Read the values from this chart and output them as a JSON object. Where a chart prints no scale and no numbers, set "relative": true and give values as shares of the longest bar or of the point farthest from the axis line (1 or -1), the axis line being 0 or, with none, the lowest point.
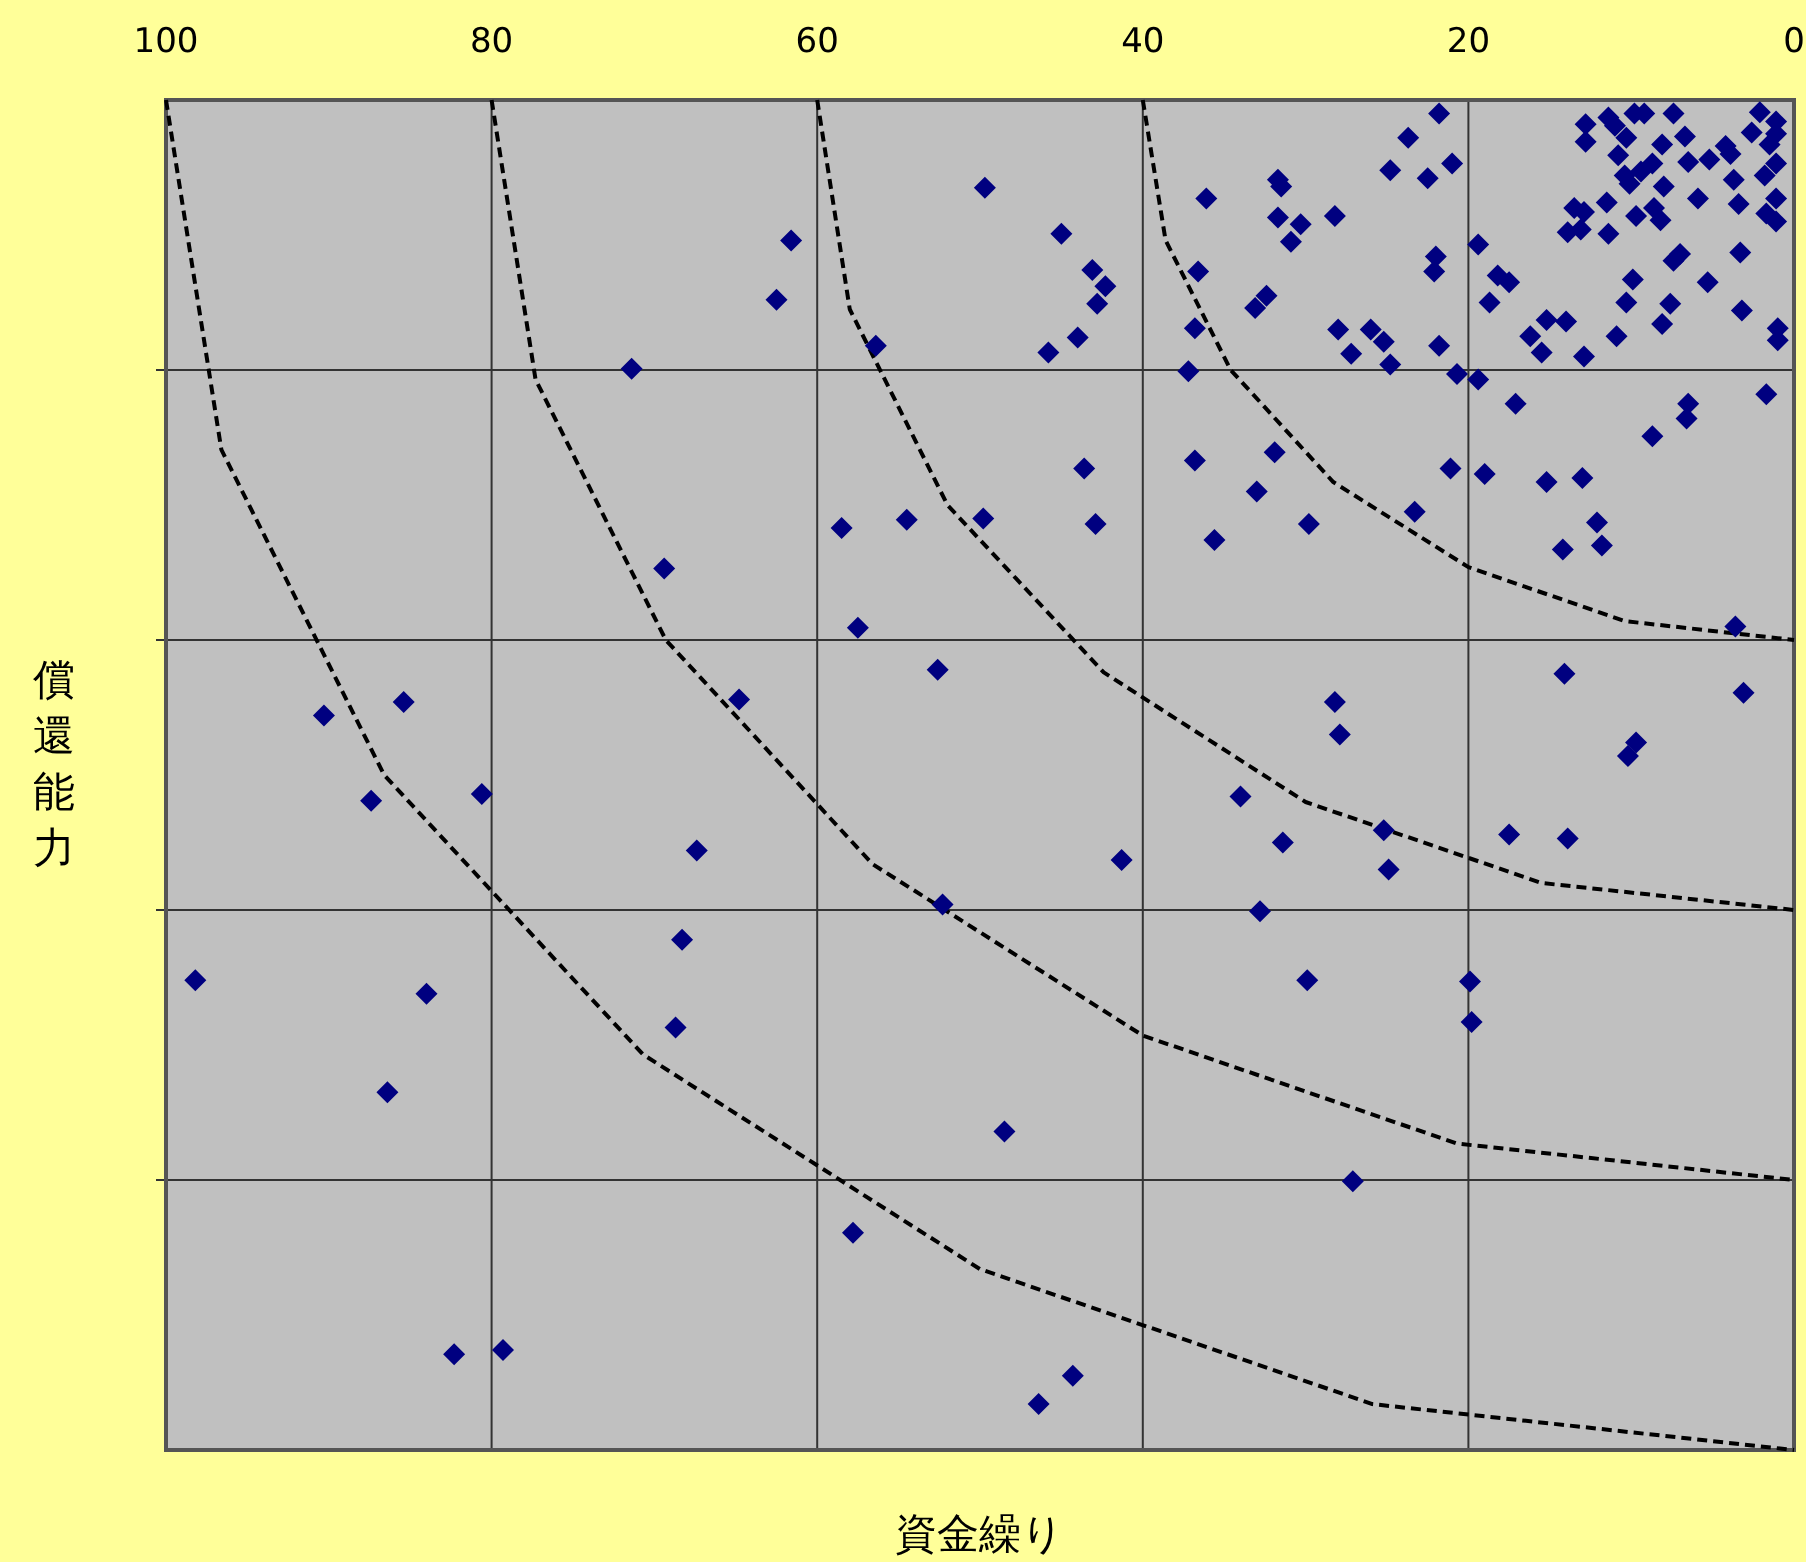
{
  "chart_data": {
    "type": "scatter",
    "xlabel": "資金繰り",
    "ylabel": "償還能力",
    "xlim": [
      100,
      0
    ],
    "xticks": [
      100,
      80,
      60,
      40,
      20,
      0
    ],
    "relative": true,
    "grid": true,
    "series": [
      {
        "type": "scatter",
        "color": "#000080",
        "marker": "diamond",
        "x": [
          21.8,
          23.7,
          24.8,
          22.5,
          21.0,
          36.1,
          31.7,
          31.5,
          31.7,
          30.3,
          28.2,
          30.9,
          36.6,
          32.4,
          33.1,
          36.8,
          37.2,
          28.0,
          27.2,
          26.0,
          25.2,
          24.8,
          21.8,
          20.7,
          19.4,
          17.1,
          22.0,
          22.1,
          19.4,
          18.2,
          17.5,
          18.7,
          15.2,
          16.2,
          15.5,
          14.0,
          12.9,
          10.9,
          10.3,
          9.9,
          8.1,
          7.6,
          7.4,
          7.0,
          5.3,
          3.3,
          3.2,
          1.0,
          1.0,
          6.5,
          1.7,
          12.8,
          12.8,
          11.4,
          11.0,
          10.3,
          9.8,
          9.2,
          7.4,
          8.1,
          6.7,
          10.8,
          10.4,
          10.1,
          9.4,
          8.7,
          8.0,
          6.5,
          5.9,
          5.2,
          4.2,
          3.9,
          3.7,
          3.4,
          2.1,
          2.6,
          1.1,
          1.1,
          1.5,
          1.1,
          1.8,
          1.1,
          1.7,
          1.1,
          11.5,
          13.5,
          12.9,
          13.9,
          13.1,
          11.4,
          9.7,
          8.6,
          8.2,
          6.6,
          8.7,
          36.8,
          31.9,
          33.0,
          35.6,
          29.8,
          23.3,
          21.1,
          19.0,
          15.2,
          13.0,
          12.1,
          14.2,
          11.8,
          3.6,
          14.1,
          3.1,
          28.2,
          27.9,
          9.7,
          10.2,
          34.0,
          31.4,
          25.2,
          24.9,
          17.5,
          13.9,
          32.8,
          29.9,
          19.9,
          19.8,
          27.1,
          49.7,
          45.0,
          43.1,
          42.3,
          42.8,
          44.0,
          45.8,
          56.4,
          61.6,
          62.5,
          71.4,
          43.6,
          42.9,
          49.8,
          54.5,
          58.5,
          69.4,
          57.5,
          52.6,
          64.8,
          90.3,
          85.4,
          87.4,
          80.6,
          67.4,
          41.3,
          52.3,
          68.3,
          98.2,
          84.0,
          68.7,
          86.4,
          48.5,
          57.8,
          82.3,
          79.3,
          44.3,
          46.4
        ],
        "values": [
          0.99,
          0.972,
          0.948,
          0.942,
          0.953,
          0.927,
          0.941,
          0.936,
          0.913,
          0.908,
          0.914,
          0.895,
          0.873,
          0.855,
          0.846,
          0.831,
          0.799,
          0.83,
          0.812,
          0.83,
          0.821,
          0.804,
          0.818,
          0.797,
          0.793,
          0.775,
          0.884,
          0.873,
          0.893,
          0.87,
          0.865,
          0.85,
          0.837,
          0.825,
          0.813,
          0.836,
          0.81,
          0.825,
          0.85,
          0.867,
          0.834,
          0.849,
          0.881,
          0.886,
          0.865,
          0.887,
          0.844,
          0.831,
          0.822,
          0.775,
          0.782,
          0.982,
          0.969,
          0.987,
          0.981,
          0.972,
          0.99,
          0.99,
          0.99,
          0.967,
          0.973,
          0.959,
          0.944,
          0.938,
          0.947,
          0.953,
          0.936,
          0.954,
          0.927,
          0.956,
          0.966,
          0.96,
          0.941,
          0.923,
          0.991,
          0.976,
          0.984,
          0.975,
          0.967,
          0.953,
          0.944,
          0.927,
          0.916,
          0.91,
          0.924,
          0.92,
          0.917,
          0.902,
          0.904,
          0.901,
          0.914,
          0.92,
          0.911,
          0.764,
          0.751,
          0.733,
          0.739,
          0.71,
          0.674,
          0.686,
          0.695,
          0.727,
          0.723,
          0.717,
          0.72,
          0.687,
          0.667,
          0.67,
          0.61,
          0.575,
          0.561,
          0.554,
          0.53,
          0.524,
          0.514,
          0.484,
          0.45,
          0.459,
          0.43,
          0.456,
          0.453,
          0.399,
          0.348,
          0.347,
          0.317,
          0.199,
          0.935,
          0.901,
          0.874,
          0.862,
          0.849,
          0.824,
          0.813,
          0.818,
          0.896,
          0.852,
          0.801,
          0.727,
          0.686,
          0.69,
          0.689,
          0.683,
          0.653,
          0.609,
          0.578,
          0.556,
          0.544,
          0.554,
          0.481,
          0.486,
          0.444,
          0.437,
          0.404,
          0.378,
          0.348,
          0.338,
          0.313,
          0.265,
          0.236,
          0.161,
          0.071,
          0.074,
          0.055,
          0.034
        ]
      },
      {
        "type": "line",
        "color": "#000000",
        "marker": "none",
        "line_style": "dashed",
        "x": [
          40,
          38.6,
          34.6,
          28.3,
          20,
          10.4,
          0
        ],
        "values": [
          1,
          0.896,
          0.8,
          0.717,
          0.654,
          0.614,
          0.6
        ]
      },
      {
        "type": "line",
        "color": "#000000",
        "marker": "none",
        "line_style": "dashed",
        "x": [
          60,
          58,
          52,
          42.4,
          30,
          15.5,
          0
        ],
        "values": [
          1,
          0.845,
          0.7,
          0.576,
          0.48,
          0.42,
          0.4
        ]
      },
      {
        "type": "line",
        "color": "#000000",
        "marker": "none",
        "line_style": "dashed",
        "x": [
          80,
          77.3,
          69.3,
          56.6,
          40,
          20.7,
          0
        ],
        "values": [
          1,
          0.793,
          0.6,
          0.434,
          0.307,
          0.227,
          0.2
        ]
      },
      {
        "type": "line",
        "color": "#000000",
        "marker": "none",
        "line_style": "dashed",
        "x": [
          100,
          96.6,
          86.6,
          70.7,
          50,
          25.9,
          0
        ],
        "values": [
          1,
          0.741,
          0.5,
          0.293,
          0.134,
          0.034,
          0
        ]
      }
    ]
  }
}
